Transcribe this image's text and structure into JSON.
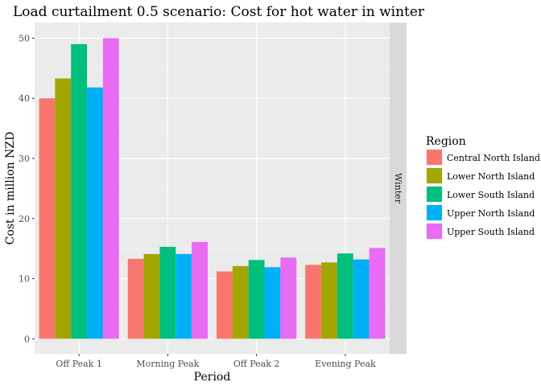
{
  "chart_data": {
    "type": "bar",
    "title": "Load curtailment 0.5 scenario: Cost for hot water in winter",
    "xlabel": "Period",
    "ylabel": "Cost in million NZD",
    "facet_label": "Winter",
    "categories": [
      "Off Peak 1",
      "Morning Peak",
      "Off Peak 2",
      "Evening Peak"
    ],
    "ylim": [
      -2.5,
      52.6
    ],
    "yticks": [
      0,
      10,
      20,
      30,
      40,
      50
    ],
    "grid": true,
    "legend_title": "Region",
    "legend_position": "right",
    "series": [
      {
        "name": "Central North Island",
        "color": "#F8766D",
        "values": [
          40.0,
          13.3,
          11.2,
          12.3
        ]
      },
      {
        "name": "Lower North Island",
        "color": "#A3A500",
        "values": [
          43.3,
          14.1,
          12.1,
          12.7
        ]
      },
      {
        "name": "Lower South Island",
        "color": "#00BF7D",
        "values": [
          49.0,
          15.3,
          13.1,
          14.2
        ]
      },
      {
        "name": "Upper North Island",
        "color": "#00B0F6",
        "values": [
          41.8,
          14.1,
          11.9,
          13.2
        ]
      },
      {
        "name": "Upper South Island",
        "color": "#E76BF3",
        "values": [
          50.0,
          16.1,
          13.5,
          15.1
        ]
      }
    ]
  }
}
